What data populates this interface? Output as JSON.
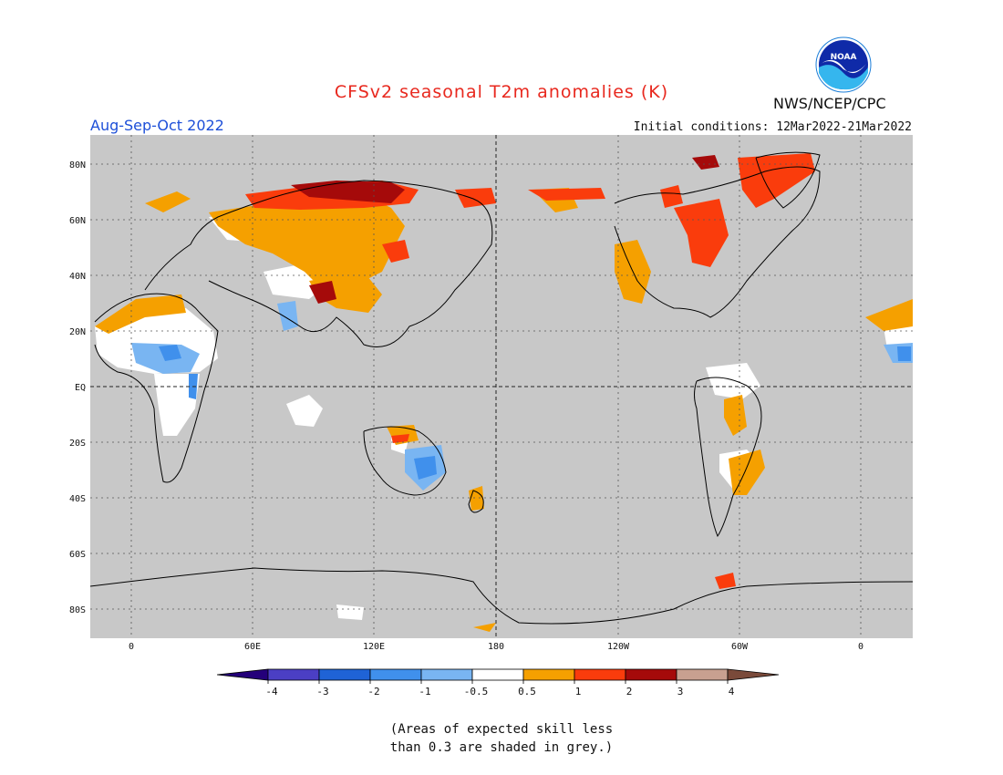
{
  "title": "CFSv2 seasonal T2m anomalies (K)",
  "season": "Aug-Sep-Oct 2022",
  "initial_conditions": "Initial conditions: 12Mar2022-21Mar2022",
  "agency": "NWS/NCEP/CPC",
  "logo_text": "NOAA",
  "lat_labels": [
    "80N",
    "60N",
    "40N",
    "20N",
    "EQ",
    "20S",
    "40S",
    "60S",
    "80S"
  ],
  "lon_labels": [
    "0",
    "60E",
    "120E",
    "180",
    "120W",
    "60W",
    "0"
  ],
  "colorbar": {
    "labels": [
      "-4",
      "-3",
      "-2",
      "-1",
      "-0.5",
      "0.5",
      "1",
      "2",
      "3",
      "4"
    ],
    "colors": [
      "#24007a",
      "#4b3fc4",
      "#1f63d6",
      "#4090ec",
      "#79b5f2",
      "#ffffff",
      "#f5a000",
      "#fa3c0c",
      "#a50a0a",
      "#c8a090",
      "#7a4a3a"
    ]
  },
  "note_line1": "(Areas of expected skill less",
  "note_line2": "than 0.3 are shaded in grey.)",
  "colors": {
    "grey_skill": "#c8c8c8",
    "neutral": "#ffffff",
    "warm_05_1": "#f5a000",
    "warm_1_2": "#fa3c0c",
    "warm_2_3": "#a50a0a",
    "cool_05_1": "#79b5f2",
    "cool_1_2": "#4090ec"
  }
}
